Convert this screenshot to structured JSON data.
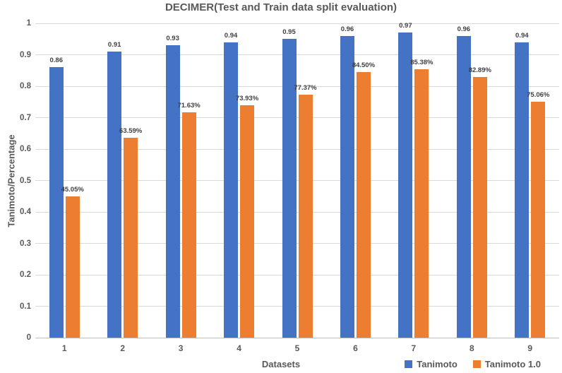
{
  "chart_data": {
    "type": "bar",
    "title": "DECIMER(Test and Train data split evaluation)",
    "xlabel": "Datasets",
    "ylabel": "Tanimoto/Percentage",
    "ylim": [
      0,
      1
    ],
    "y_tick_step": 0.1,
    "y_tick_labels": [
      "0",
      "0.1",
      "0.2",
      "0.3",
      "0.4",
      "0.5",
      "0.6",
      "0.7",
      "0.8",
      "0.9",
      "1"
    ],
    "grid": true,
    "legend_position": "bottom-right",
    "categories": [
      "1",
      "2",
      "3",
      "4",
      "5",
      "6",
      "7",
      "8",
      "9"
    ],
    "series": [
      {
        "name": "Tanimoto",
        "color": "#4472C4",
        "values": [
          0.86,
          0.91,
          0.93,
          0.94,
          0.95,
          0.96,
          0.97,
          0.96,
          0.94
        ],
        "labels": [
          "0.86",
          "0.91",
          "0.93",
          "0.94",
          "0.95",
          "0.96",
          "0.97",
          "0.96",
          "0.94"
        ]
      },
      {
        "name": "Tanimoto 1.0",
        "color": "#ED7D31",
        "values": [
          0.4505,
          0.6359,
          0.7163,
          0.7393,
          0.7737,
          0.845,
          0.8538,
          0.8289,
          0.7506
        ],
        "labels": [
          "45.05%",
          "63.59%",
          "71.63%",
          "73.93%",
          "77.37%",
          "84.50%",
          "85.38%",
          "82.89%",
          "75.06%"
        ]
      }
    ]
  },
  "colors": {
    "title_text": "#595959",
    "tick_text": "#595959",
    "data_label_text": "#3f3f3f",
    "gridline": "#d9d9d9",
    "axis_line": "#bfbfbf",
    "background": "#ffffff"
  }
}
